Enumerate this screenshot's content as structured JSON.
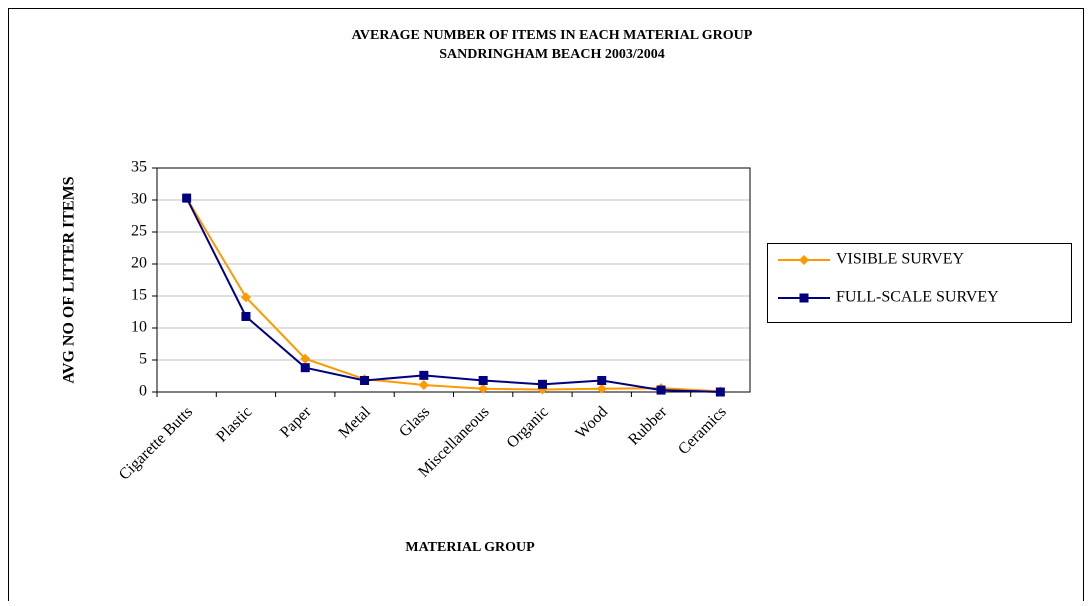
{
  "chart_data": {
    "type": "line",
    "title": "AVERAGE NUMBER OF ITEMS IN EACH MATERIAL GROUP",
    "subtitle": "SANDRINGHAM BEACH 2003/2004",
    "x_label": "MATERIAL GROUP",
    "y_label": "AVG NO OF LITTER ITEMS",
    "categories": [
      "Cigarette Butts",
      "Plastic",
      "Paper",
      "Metal",
      "Glass",
      "Miscellaneous",
      "Organic",
      "Wood",
      "Rubber",
      "Ceramics"
    ],
    "series": [
      {
        "name": "VISIBLE SURVEY",
        "color": "#ff9900",
        "marker": "diamond",
        "values": [
          30.3,
          14.8,
          5.2,
          2.0,
          1.1,
          0.5,
          0.4,
          0.5,
          0.6,
          0.1
        ]
      },
      {
        "name": "FULL-SCALE SURVEY",
        "color": "#000080",
        "marker": "square",
        "values": [
          30.3,
          11.8,
          3.8,
          1.8,
          2.6,
          1.8,
          1.2,
          1.8,
          0.3,
          0.0
        ]
      }
    ],
    "ylim": [
      0,
      35
    ],
    "yticks": [
      0,
      5,
      10,
      15,
      20,
      25,
      30,
      35
    ],
    "grid": true,
    "legend": "right"
  }
}
